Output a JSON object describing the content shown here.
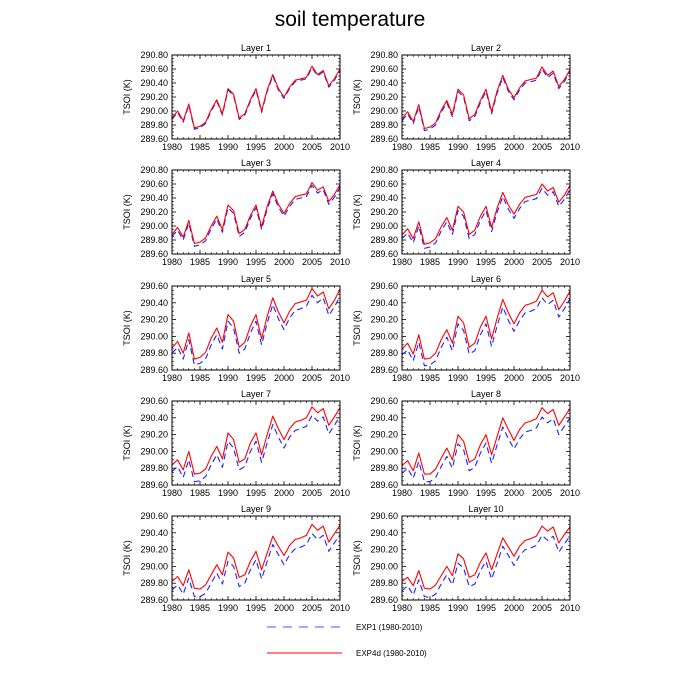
{
  "title": "soil temperature",
  "chart_data": {
    "type": "line",
    "ylabel": "TSOI  (K)",
    "x": [
      1980,
      1981,
      1982,
      1983,
      1984,
      1985,
      1986,
      1987,
      1988,
      1989,
      1990,
      1991,
      1992,
      1993,
      1994,
      1995,
      1996,
      1997,
      1998,
      1999,
      2000,
      2001,
      2002,
      2003,
      2004,
      2005,
      2006,
      2007,
      2008,
      2009,
      2010
    ],
    "xticks": [
      1980,
      1985,
      1990,
      1995,
      2000,
      2005,
      2010
    ],
    "xlim": [
      1980,
      2010
    ],
    "series_styles": [
      {
        "name": "EXP1 (1980-2010)",
        "color": "#2020ff",
        "dash": "6,4"
      },
      {
        "name": "EXP4d (1980-2010)",
        "color": "#ff0000",
        "dash": ""
      }
    ],
    "legend": [
      "EXP1 (1980-2010)",
      "EXP4d (1980-2010)"
    ],
    "panels": [
      {
        "title": "Layer 1",
        "ylim": [
          289.6,
          290.8
        ],
        "yticks": [
          "289.60",
          "289.80",
          "290.00",
          "290.20",
          "290.40",
          "290.60",
          "290.80"
        ],
        "series": [
          {
            "name": "EXP1 (1980-2010)",
            "values": [
              289.88,
              289.98,
              289.84,
              290.08,
              289.74,
              289.76,
              289.82,
              290.0,
              290.14,
              289.94,
              290.3,
              290.22,
              289.88,
              289.94,
              290.14,
              290.3,
              289.98,
              290.28,
              290.5,
              290.3,
              290.18,
              290.32,
              290.42,
              290.44,
              290.46,
              290.62,
              290.5,
              290.56,
              290.34,
              290.44,
              290.58
            ]
          },
          {
            "name": "EXP4d (1980-2010)",
            "values": [
              289.9,
              290.0,
              289.86,
              290.1,
              289.76,
              289.78,
              289.84,
              290.02,
              290.16,
              289.96,
              290.32,
              290.24,
              289.9,
              289.96,
              290.16,
              290.32,
              290.0,
              290.3,
              290.52,
              290.32,
              290.2,
              290.34,
              290.44,
              290.46,
              290.48,
              290.64,
              290.52,
              290.58,
              290.36,
              290.46,
              290.6
            ]
          }
        ]
      },
      {
        "title": "Layer 2",
        "ylim": [
          289.6,
          290.8
        ],
        "yticks": [
          "289.60",
          "289.80",
          "290.00",
          "290.20",
          "290.40",
          "290.60",
          "290.80"
        ],
        "series": [
          {
            "name": "EXP1 (1980-2010)",
            "values": [
              289.86,
              289.96,
              289.82,
              290.06,
              289.72,
              289.74,
              289.8,
              289.98,
              290.12,
              289.92,
              290.28,
              290.2,
              289.86,
              289.92,
              290.12,
              290.28,
              289.96,
              290.26,
              290.48,
              290.28,
              290.16,
              290.3,
              290.4,
              290.42,
              290.44,
              290.6,
              290.48,
              290.54,
              290.32,
              290.42,
              290.56
            ]
          },
          {
            "name": "EXP4d (1980-2010)",
            "values": [
              289.89,
              289.99,
              289.85,
              290.09,
              289.75,
              289.77,
              289.83,
              290.01,
              290.15,
              289.95,
              290.31,
              290.23,
              289.89,
              289.95,
              290.15,
              290.31,
              289.99,
              290.29,
              290.51,
              290.31,
              290.19,
              290.33,
              290.43,
              290.45,
              290.47,
              290.63,
              290.51,
              290.57,
              290.35,
              290.45,
              290.59
            ]
          }
        ]
      },
      {
        "title": "Layer 3",
        "ylim": [
          289.6,
          290.8
        ],
        "yticks": [
          "289.60",
          "289.80",
          "290.00",
          "290.20",
          "290.40",
          "290.60",
          "290.80"
        ],
        "series": [
          {
            "name": "EXP1 (1980-2010)",
            "values": [
              289.85,
              289.94,
              289.8,
              290.04,
              289.71,
              289.73,
              289.79,
              289.96,
              290.1,
              289.91,
              290.26,
              290.18,
              289.85,
              289.91,
              290.11,
              290.26,
              289.95,
              290.24,
              290.46,
              290.27,
              290.14,
              290.28,
              290.38,
              290.4,
              290.42,
              290.58,
              290.47,
              290.52,
              290.31,
              290.41,
              290.55
            ]
          },
          {
            "name": "EXP4d (1980-2010)",
            "values": [
              289.88,
              289.98,
              289.84,
              290.08,
              289.75,
              289.77,
              289.83,
              290.0,
              290.14,
              289.95,
              290.3,
              290.22,
              289.89,
              289.95,
              290.15,
              290.3,
              289.99,
              290.28,
              290.5,
              290.31,
              290.18,
              290.32,
              290.42,
              290.44,
              290.46,
              290.62,
              290.51,
              290.56,
              290.35,
              290.45,
              290.59
            ]
          }
        ]
      },
      {
        "title": "Layer 4",
        "ylim": [
          289.6,
          290.8
        ],
        "yticks": [
          "289.60",
          "289.80",
          "290.00",
          "290.20",
          "290.40",
          "290.60",
          "290.80"
        ],
        "series": [
          {
            "name": "EXP1 (1980-2010)",
            "values": [
              289.82,
              289.9,
              289.76,
              290.0,
              289.68,
              289.7,
              289.76,
              289.93,
              290.06,
              289.88,
              290.22,
              290.14,
              289.82,
              289.88,
              290.08,
              290.22,
              289.92,
              290.2,
              290.42,
              290.24,
              290.11,
              290.25,
              290.35,
              290.37,
              290.39,
              290.54,
              290.44,
              290.49,
              290.28,
              290.38,
              290.52
            ]
          },
          {
            "name": "EXP4d (1980-2010)",
            "values": [
              289.87,
              289.96,
              289.82,
              290.06,
              289.74,
              289.76,
              289.82,
              289.99,
              290.12,
              289.94,
              290.28,
              290.2,
              289.88,
              289.94,
              290.14,
              290.28,
              289.98,
              290.26,
              290.48,
              290.3,
              290.17,
              290.31,
              290.41,
              290.43,
              290.45,
              290.6,
              290.5,
              290.55,
              290.34,
              290.44,
              290.58
            ]
          }
        ]
      },
      {
        "title": "Layer 5",
        "ylim": [
          289.6,
          290.6
        ],
        "yticks": [
          "289.60",
          "289.80",
          "290.00",
          "290.20",
          "290.40",
          "290.60"
        ],
        "series": [
          {
            "name": "EXP1 (1980-2010)",
            "values": [
              289.8,
              289.87,
              289.73,
              289.96,
              289.66,
              289.68,
              289.73,
              289.9,
              290.02,
              289.85,
              290.18,
              290.1,
              289.8,
              289.85,
              290.04,
              290.18,
              289.9,
              290.16,
              290.38,
              290.21,
              290.08,
              290.22,
              290.31,
              290.33,
              290.36,
              290.49,
              290.4,
              290.46,
              290.25,
              290.35,
              290.48
            ]
          },
          {
            "name": "EXP4d (1980-2010)",
            "values": [
              289.86,
              289.94,
              289.8,
              290.04,
              289.73,
              289.75,
              289.81,
              289.98,
              290.1,
              289.93,
              290.26,
              290.18,
              289.87,
              289.93,
              290.12,
              290.26,
              289.97,
              290.24,
              290.46,
              290.29,
              290.16,
              290.3,
              290.39,
              290.41,
              290.43,
              290.57,
              290.48,
              290.53,
              290.33,
              290.43,
              290.56
            ]
          }
        ]
      },
      {
        "title": "Layer 6",
        "ylim": [
          289.6,
          290.6
        ],
        "yticks": [
          "289.60",
          "289.80",
          "290.00",
          "290.20",
          "290.40",
          "290.60"
        ],
        "series": [
          {
            "name": "EXP1 (1980-2010)",
            "values": [
              289.78,
              289.84,
              289.71,
              289.93,
              289.65,
              289.66,
              289.71,
              289.87,
              289.99,
              289.83,
              290.15,
              290.07,
              289.79,
              289.83,
              290.02,
              290.15,
              289.88,
              290.13,
              290.35,
              290.19,
              290.06,
              290.19,
              290.28,
              290.3,
              290.33,
              290.46,
              290.38,
              290.43,
              290.23,
              290.33,
              290.45
            ]
          },
          {
            "name": "EXP4d (1980-2010)",
            "values": [
              289.85,
              289.92,
              289.79,
              290.02,
              289.73,
              289.74,
              289.8,
              289.96,
              290.08,
              289.92,
              290.24,
              290.16,
              289.87,
              289.92,
              290.11,
              290.24,
              289.97,
              290.22,
              290.44,
              290.28,
              290.15,
              290.28,
              290.37,
              290.39,
              290.42,
              290.55,
              290.47,
              290.52,
              290.32,
              290.42,
              290.54
            ]
          }
        ]
      },
      {
        "title": "Layer 7",
        "ylim": [
          289.6,
          290.6
        ],
        "yticks": [
          "289.60",
          "289.80",
          "290.00",
          "290.20",
          "290.40",
          "290.60"
        ],
        "series": [
          {
            "name": "EXP1 (1980-2010)",
            "values": [
              289.76,
              289.82,
              289.69,
              289.9,
              289.64,
              289.65,
              289.7,
              289.84,
              289.96,
              289.81,
              290.12,
              290.04,
              289.78,
              289.82,
              290.0,
              290.12,
              289.87,
              290.1,
              290.32,
              290.17,
              290.04,
              290.17,
              290.25,
              290.27,
              290.3,
              290.43,
              290.36,
              290.41,
              290.21,
              290.31,
              290.42
            ]
          },
          {
            "name": "EXP4d (1980-2010)",
            "values": [
              289.84,
              289.9,
              289.78,
              290.0,
              289.73,
              289.74,
              289.79,
              289.94,
              290.06,
              289.91,
              290.22,
              290.14,
              289.87,
              289.91,
              290.1,
              290.22,
              289.96,
              290.2,
              290.42,
              290.27,
              290.14,
              290.27,
              290.35,
              290.37,
              290.4,
              290.53,
              290.46,
              290.51,
              290.31,
              290.41,
              290.52
            ]
          }
        ]
      },
      {
        "title": "Layer 8",
        "ylim": [
          289.6,
          290.6
        ],
        "yticks": [
          "289.60",
          "289.80",
          "290.00",
          "290.20",
          "290.40",
          "290.60"
        ],
        "series": [
          {
            "name": "EXP1 (1980-2010)",
            "values": [
              289.74,
              289.8,
              289.68,
              289.88,
              289.64,
              289.64,
              289.69,
              289.82,
              289.94,
              289.8,
              290.09,
              290.02,
              289.77,
              289.81,
              289.98,
              290.1,
              289.86,
              290.08,
              290.29,
              290.15,
              290.03,
              290.15,
              290.23,
              290.25,
              290.28,
              290.41,
              290.34,
              290.39,
              290.2,
              290.3,
              290.4
            ]
          },
          {
            "name": "EXP4d (1980-2010)",
            "values": [
              289.83,
              289.89,
              289.77,
              289.98,
              289.73,
              289.73,
              289.79,
              289.92,
              290.04,
              289.9,
              290.2,
              290.12,
              289.87,
              289.91,
              290.08,
              290.2,
              289.96,
              290.18,
              290.4,
              290.26,
              290.13,
              290.26,
              290.34,
              290.36,
              290.39,
              290.52,
              290.45,
              290.5,
              290.31,
              290.41,
              290.51
            ]
          }
        ]
      },
      {
        "title": "Layer 9",
        "ylim": [
          289.6,
          290.6
        ],
        "yticks": [
          "289.60",
          "289.80",
          "290.00",
          "290.20",
          "290.40",
          "290.60"
        ],
        "series": [
          {
            "name": "EXP1 (1980-2010)",
            "values": [
              289.72,
              289.78,
              289.67,
              289.86,
              289.64,
              289.64,
              289.68,
              289.8,
              289.92,
              289.79,
              290.06,
              290.0,
              289.76,
              289.8,
              289.96,
              290.08,
              289.85,
              290.06,
              290.26,
              290.14,
              290.02,
              290.14,
              290.21,
              290.23,
              290.26,
              290.39,
              290.32,
              290.37,
              290.18,
              290.28,
              290.38
            ]
          },
          {
            "name": "EXP4d (1980-2010)",
            "values": [
              289.82,
              289.88,
              289.77,
              289.96,
              289.74,
              289.73,
              289.78,
              289.9,
              290.02,
              289.9,
              290.17,
              290.1,
              289.87,
              289.9,
              290.06,
              290.18,
              289.96,
              290.16,
              290.36,
              290.24,
              290.13,
              290.25,
              290.32,
              290.34,
              290.37,
              290.5,
              290.43,
              290.48,
              290.29,
              290.39,
              290.49
            ]
          }
        ]
      },
      {
        "title": "Layer 10",
        "ylim": [
          289.6,
          290.6
        ],
        "yticks": [
          "289.60",
          "289.80",
          "290.00",
          "290.20",
          "290.40",
          "290.60"
        ],
        "series": [
          {
            "name": "EXP1 (1980-2010)",
            "values": [
              289.71,
              289.77,
              289.66,
              289.84,
              289.64,
              289.63,
              289.67,
              289.79,
              289.9,
              289.78,
              290.04,
              289.98,
              289.76,
              289.79,
              289.95,
              290.06,
              289.85,
              290.04,
              290.24,
              290.13,
              290.01,
              290.13,
              290.2,
              290.22,
              290.25,
              290.37,
              290.31,
              290.36,
              290.17,
              290.27,
              290.36
            ]
          },
          {
            "name": "EXP4d (1980-2010)",
            "values": [
              289.82,
              289.87,
              289.77,
              289.95,
              289.74,
              289.73,
              289.78,
              289.89,
              290.0,
              289.89,
              290.15,
              290.09,
              289.87,
              289.9,
              290.05,
              290.16,
              289.96,
              290.15,
              290.34,
              290.23,
              290.12,
              290.24,
              290.31,
              290.33,
              290.36,
              290.48,
              290.42,
              290.47,
              290.28,
              290.38,
              290.47
            ]
          }
        ]
      }
    ]
  }
}
